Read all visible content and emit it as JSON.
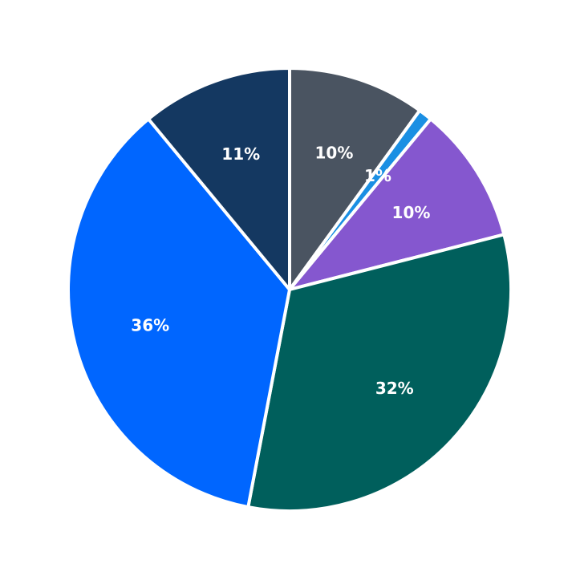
{
  "chart_data": {
    "type": "pie",
    "title": "",
    "start": "top",
    "direction": "clockwise",
    "slices": [
      {
        "value": 10,
        "label": "10%",
        "color": "#4a5461"
      },
      {
        "value": 1,
        "label": "1%",
        "color": "#1a8fe3"
      },
      {
        "value": 10,
        "label": "10%",
        "color": "#8557cf"
      },
      {
        "value": 32,
        "label": "32%",
        "color": "#005f5c"
      },
      {
        "value": 36,
        "label": "36%",
        "color": "#0066ff"
      },
      {
        "value": 11,
        "label": "11%",
        "color": "#143861"
      }
    ]
  }
}
